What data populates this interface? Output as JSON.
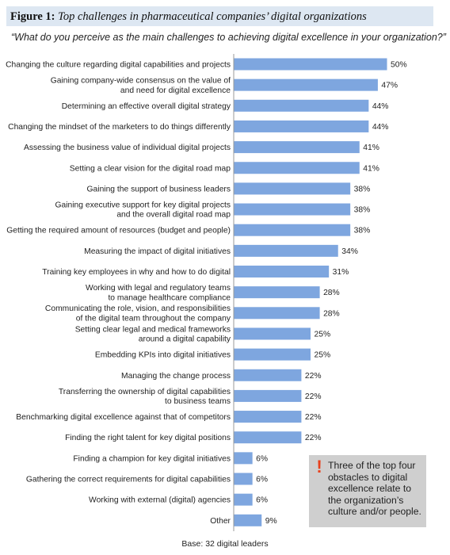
{
  "figure": {
    "label": "Figure 1:",
    "title": "Top challenges in pharmaceutical companies’ digital organizations"
  },
  "question": "“What do you perceive as the main challenges to achieving digital excellence in your organization?”",
  "note": {
    "icon": "exclamation-icon",
    "text": "Three of the top four obstacles to digital excellence relate to the organization’s culture and/or people."
  },
  "base": "Base: 32 digital leaders",
  "colors": {
    "bar": "#7ea6df",
    "header_bg": "#dde7f2",
    "note_bg": "#cfcfcf",
    "accent": "#e8401c"
  },
  "chart_data": {
    "type": "bar",
    "orientation": "horizontal",
    "unit": "%",
    "xlim": [
      0,
      50
    ],
    "grid": false,
    "categories": [
      [
        "Changing the culture regarding digital capabilities and projects"
      ],
      [
        "Gaining company-wide consensus on the value of",
        "and need for digital excellence"
      ],
      [
        "Determining an effective overall digital strategy"
      ],
      [
        "Changing the mindset of the marketers to do things differently"
      ],
      [
        "Assessing the business value of individual digital projects"
      ],
      [
        "Setting a clear vision for the digital road map"
      ],
      [
        "Gaining the support of business leaders"
      ],
      [
        "Gaining executive support for key digital projects",
        "and the overall digital road map"
      ],
      [
        "Getting the required amount of resources (budget and people)"
      ],
      [
        "Measuring the impact of digital initiatives"
      ],
      [
        "Training key employees in why and how to do digital"
      ],
      [
        "Working with legal and regulatory teams",
        "to manage healthcare compliance"
      ],
      [
        "Communicating the role, vision, and responsibilities",
        "of the digital team throughout the company"
      ],
      [
        "Setting clear legal and medical frameworks",
        "around a digital capability"
      ],
      [
        "Embedding KPIs into digital initiatives"
      ],
      [
        "Managing the change process"
      ],
      [
        "Transferring the ownership of digital capabilities",
        "to business teams"
      ],
      [
        "Benchmarking digital excellence against that of competitors"
      ],
      [
        "Finding the right talent for key digital positions"
      ],
      [
        "Finding a champion for key digital initiatives"
      ],
      [
        "Gathering the correct requirements for digital capabilities"
      ],
      [
        "Working with external (digital) agencies"
      ],
      [
        "Other"
      ]
    ],
    "values": [
      50,
      47,
      44,
      44,
      41,
      41,
      38,
      38,
      38,
      34,
      31,
      28,
      28,
      25,
      25,
      22,
      22,
      22,
      22,
      6,
      6,
      6,
      9
    ]
  }
}
